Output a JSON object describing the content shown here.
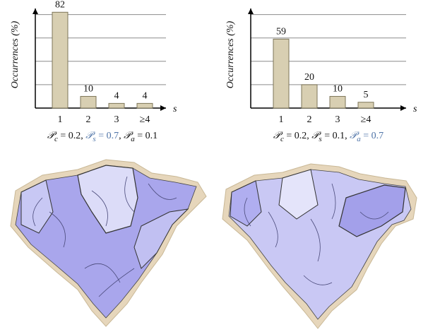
{
  "chart_data": [
    {
      "type": "bar",
      "ylabel": "Occurrences (%)",
      "xlabel": "s",
      "categories": [
        "1",
        "2",
        "3",
        "≥4"
      ],
      "values": [
        82,
        10,
        4,
        4
      ],
      "color": "#d8cfb2",
      "ylim": [
        0,
        84
      ],
      "yticks": [
        20,
        40,
        60,
        80
      ],
      "ytick_labels": false,
      "grid": true,
      "caption": [
        {
          "symbol": "𝒫",
          "sub": "c",
          "text": " = 0.2, "
        },
        {
          "symbol": "𝒫",
          "sub": "s",
          "text": " = 0.7"
        },
        {
          "symbol": "",
          "sub": "",
          "text": ", "
        },
        {
          "symbol": "𝒫",
          "sub": "a",
          "text": " = 0.1"
        }
      ],
      "highlight": 1,
      "highlight_color": "#4f74a8"
    },
    {
      "type": "bar",
      "ylabel": "Occurrences (%)",
      "xlabel": "s",
      "categories": [
        "1",
        "2",
        "3",
        "≥4"
      ],
      "values": [
        59,
        20,
        10,
        5
      ],
      "color": "#d8cfb2",
      "ylim": [
        0,
        84
      ],
      "yticks": [
        20,
        40,
        60,
        80
      ],
      "ytick_labels": false,
      "grid": true,
      "caption": [
        {
          "symbol": "𝒫",
          "sub": "c",
          "text": " = 0.2, "
        },
        {
          "symbol": "𝒫",
          "sub": "s",
          "text": " = 0.1, "
        },
        {
          "symbol": "𝒫",
          "sub": "a",
          "text": " = 0.7"
        }
      ],
      "highlight": 2,
      "highlight_color": "#4f74a8"
    }
  ]
}
